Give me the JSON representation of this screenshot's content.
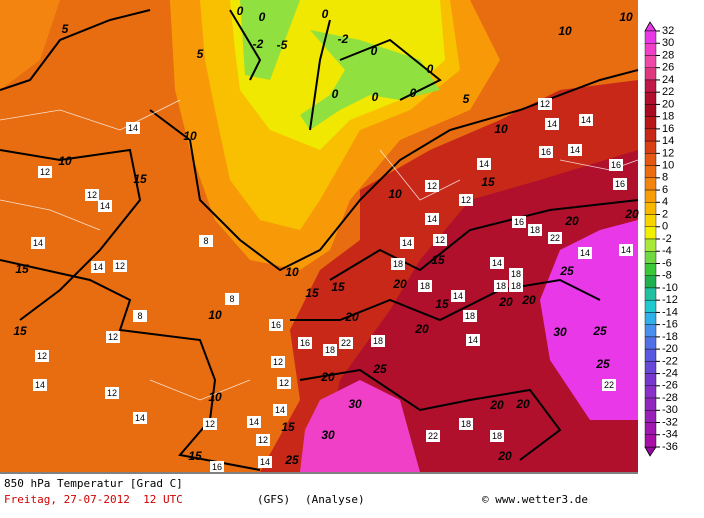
{
  "title": "850 hPa Temperatur [Grad C]",
  "date": "Freitag, 27-07-2012  12 UTC",
  "model": "(GFS)",
  "analysis": "(Analyse)",
  "credit": "© www.wetter3.de",
  "colorbar": {
    "ticks": [
      32,
      30,
      28,
      26,
      24,
      22,
      20,
      18,
      16,
      14,
      12,
      10,
      8,
      6,
      4,
      2,
      0,
      -2,
      -4,
      -6,
      -8,
      -10,
      -12,
      -14,
      -16,
      -18,
      -20,
      -22,
      -24,
      -26,
      -28,
      -30,
      -32,
      -34,
      -36
    ],
    "colors": [
      "#e838e8",
      "#f040c8",
      "#f048a8",
      "#e03880",
      "#c01848",
      "#b0102c",
      "#a80c20",
      "#b81818",
      "#c82818",
      "#d84014",
      "#e45814",
      "#ec6c10",
      "#f48410",
      "#f89c08",
      "#f8b800",
      "#f8d400",
      "#f0f000",
      "#a8e838",
      "#70d840",
      "#38c838",
      "#20b050",
      "#20c0a0",
      "#20c8d0",
      "#30b0e8",
      "#4890f0",
      "#5070e8",
      "#5858e0",
      "#6848d8",
      "#7838d0",
      "#8830c8",
      "#9028c0",
      "#9820b8",
      "#a018b0",
      "#a810a8",
      "#9808a0"
    ]
  },
  "contour_labels": [
    5,
    5,
    0,
    0,
    0,
    -2,
    -5,
    -2,
    0,
    0,
    0,
    0,
    0,
    5,
    10,
    10,
    10,
    10,
    15,
    15,
    15,
    10,
    10,
    15,
    10,
    15,
    15,
    10,
    10,
    15,
    20,
    20,
    25,
    30,
    25,
    25,
    20,
    20,
    15,
    15,
    20,
    20,
    20,
    20,
    25,
    30,
    30,
    25,
    15,
    20,
    20,
    20,
    14,
    12,
    12,
    14,
    12,
    14,
    14,
    12,
    14,
    12,
    14,
    12,
    14,
    12,
    14,
    12,
    14,
    16,
    8,
    8,
    8,
    12,
    12,
    14,
    14,
    16,
    14,
    16,
    16,
    14,
    12,
    12,
    12,
    14,
    14,
    16,
    18,
    22,
    14,
    18,
    18,
    18,
    14,
    18,
    14,
    22,
    18,
    18,
    22,
    14,
    14,
    18,
    18,
    22,
    18,
    18,
    16,
    16,
    12
  ]
}
